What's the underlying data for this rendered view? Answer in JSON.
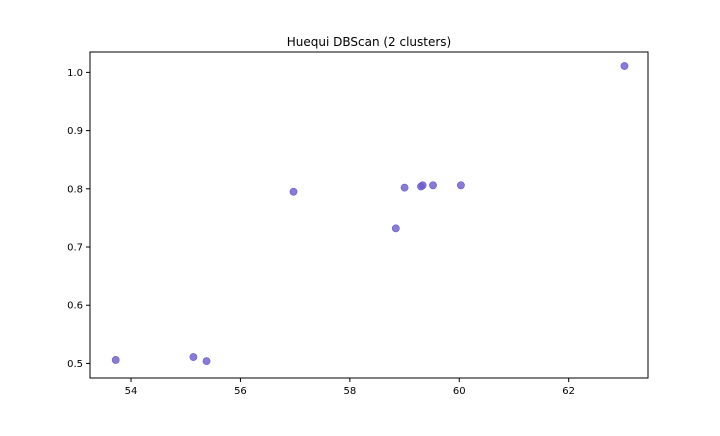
{
  "chart_data": {
    "type": "scatter",
    "title": "Huequi DBScan (2 clusters)",
    "xlabel": "",
    "ylabel": "",
    "xlim": [
      53.25,
      63.45
    ],
    "ylim": [
      0.475,
      1.035
    ],
    "x_ticks": [
      54,
      56,
      58,
      60,
      62
    ],
    "y_ticks": [
      0.5,
      0.6,
      0.7,
      0.8,
      0.9,
      1.0
    ],
    "x_tick_labels": [
      "54",
      "56",
      "58",
      "60",
      "62"
    ],
    "y_tick_labels": [
      "0.5",
      "0.6",
      "0.7",
      "0.8",
      "0.9",
      "1.0"
    ],
    "grid": false,
    "point_color": "#6a5acd",
    "series": [
      {
        "x": [
          53.72,
          55.14,
          55.38,
          56.97,
          58.84,
          59.0,
          59.3,
          59.33,
          59.52,
          60.03,
          63.02
        ],
        "y": [
          0.506,
          0.511,
          0.504,
          0.795,
          0.732,
          0.802,
          0.804,
          0.806,
          0.806,
          0.806,
          1.011
        ]
      }
    ]
  }
}
